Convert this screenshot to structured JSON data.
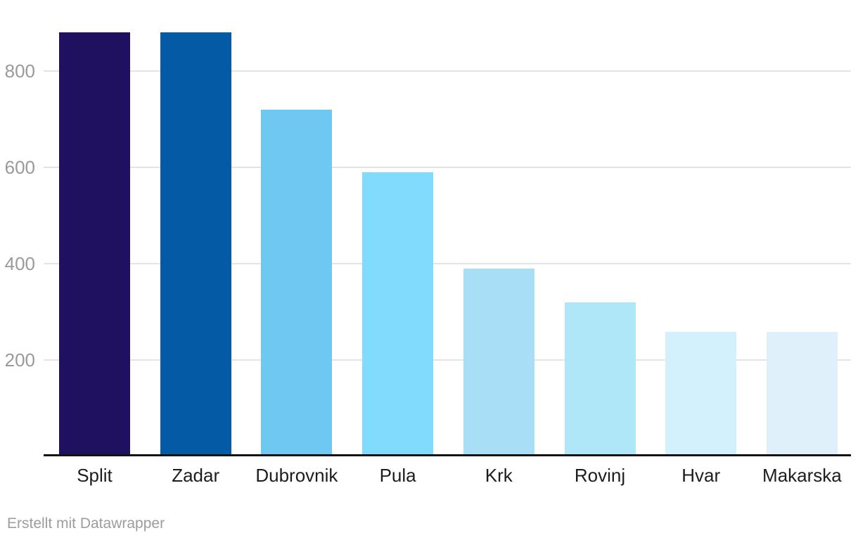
{
  "chart_data": {
    "type": "bar",
    "title": "",
    "xlabel": "",
    "ylabel": "",
    "categories": [
      "Split",
      "Zadar",
      "Dubrovnik",
      "Pula",
      "Krk",
      "Rovinj",
      "Hvar",
      "Makarska"
    ],
    "values": [
      880,
      880,
      720,
      590,
      390,
      320,
      258,
      258
    ],
    "bar_colors": [
      "#1f1160",
      "#045aa5",
      "#6ec8f1",
      "#80dbfc",
      "#a9dff6",
      "#afe7f8",
      "#d3f1fc",
      "#e0f0fb"
    ],
    "yticks": [
      200,
      400,
      600,
      800
    ],
    "ylim": [
      0,
      880
    ],
    "grid": "horizontal-only",
    "legend": "none",
    "background_color": "#ffffff",
    "axis_line_color": "#131313",
    "gridline_color": "#e4e4e4",
    "ytick_label_color": "#9a9a9a",
    "category_label_color": "#1d1d1d"
  },
  "footer": {
    "attribution": "Erstellt mit Datawrapper"
  }
}
